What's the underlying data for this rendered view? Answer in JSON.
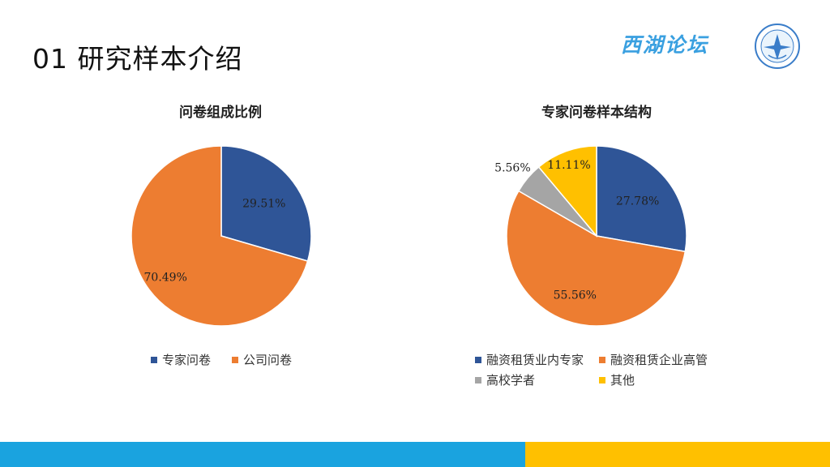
{
  "page": {
    "title": "01 研究样本介绍",
    "brand": "西湖论坛"
  },
  "colors": {
    "blue": "#2f5597",
    "orange": "#ed7d31",
    "gray": "#a5a5a5",
    "yellow": "#ffc000",
    "footer_blue": "#1aa3df",
    "footer_yellow": "#ffc000"
  },
  "chart_data": [
    {
      "type": "pie",
      "title": "问卷组成比例",
      "categories": [
        "专家问卷",
        "公司问卷"
      ],
      "values": [
        29.51,
        70.49
      ],
      "labels": [
        "29.51%",
        "70.49%"
      ],
      "colors": [
        "#2f5597",
        "#ed7d31"
      ],
      "legend_position": "bottom"
    },
    {
      "type": "pie",
      "title": "专家问卷样本结构",
      "categories": [
        "融资租赁业内专家",
        "融资租赁企业高管",
        "高校学者",
        "其他"
      ],
      "values": [
        27.78,
        55.56,
        5.56,
        11.11
      ],
      "labels": [
        "27.78%",
        "55.56%",
        "5.56%",
        "11.11%"
      ],
      "colors": [
        "#2f5597",
        "#ed7d31",
        "#a5a5a5",
        "#ffc000"
      ],
      "legend_position": "bottom"
    }
  ]
}
